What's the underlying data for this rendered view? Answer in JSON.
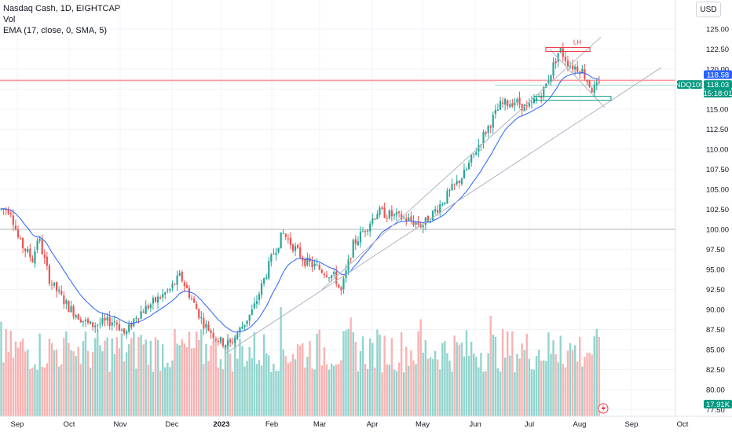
{
  "legend": {
    "title": "Nasdaq Cash, 1D, EIGHTCAP",
    "volume": "Vol",
    "ema": "EMA (17, close, 0, SMA, 5)"
  },
  "currency_button": "USD",
  "symbol_tag": "NDQ100",
  "price_tags": {
    "ema_value": "118.58",
    "last_price": "118.03",
    "countdown": "15:18:01",
    "volume_value": "17.91K"
  },
  "annotation_text": "LH",
  "colors": {
    "up": "#26a69a",
    "down": "#ef5350",
    "vol_up": "#7fcdc4",
    "vol_down": "#f7a6a4",
    "ema": "#2962ff",
    "trend": "#b2b5be",
    "resistance": "#f23645",
    "support": "#089981"
  },
  "chart_data": {
    "type": "candlestick",
    "title": "Nasdaq Cash, 1D, EIGHTCAP",
    "ylim": [
      77.5,
      126.5
    ],
    "y_ticks": [
      "125.00",
      "122.50",
      "120.00",
      "117.50",
      "115.00",
      "112.50",
      "110.00",
      "107.50",
      "105.00",
      "102.50",
      "100.00",
      "97.50",
      "95.00",
      "92.50",
      "90.00",
      "87.50",
      "85.00",
      "82.50",
      "80.00",
      "77.50"
    ],
    "x_ticks": [
      "Sep",
      "Oct",
      "Nov",
      "Dec",
      "2023",
      "Feb",
      "Mar",
      "Apr",
      "May",
      "Jun",
      "Jul",
      "Aug",
      "Sep",
      "Oct"
    ],
    "horizontal_levels": [
      {
        "price": 118.6,
        "label": "resistance (red)"
      },
      {
        "price": 100.0,
        "label": "gray"
      }
    ],
    "series": [
      {
        "name": "Nasdaq Cash",
        "close_path": [
          [
            "Aug-25",
            102.5
          ],
          [
            "Sep-02",
            98.5
          ],
          [
            "Sep-10",
            96.2
          ],
          [
            "Sep-13",
            99.2
          ],
          [
            "Sep-20",
            93.5
          ],
          [
            "Oct-01",
            90.2
          ],
          [
            "Oct-13",
            88.0
          ],
          [
            "Oct-28",
            88.6
          ],
          [
            "Nov-04",
            86.8
          ],
          [
            "Nov-10",
            89.2
          ],
          [
            "Nov-30",
            92.5
          ],
          [
            "Dec-06",
            94.2
          ],
          [
            "Dec-20",
            88.3
          ],
          [
            "Dec-30",
            86.0
          ],
          [
            "Jan-06",
            85.6
          ],
          [
            "Jan-20",
            90.0
          ],
          [
            "Feb-02",
            97.0
          ],
          [
            "Feb-08",
            99.5
          ],
          [
            "Feb-22",
            96.0
          ],
          [
            "Mar-10",
            94.0
          ],
          [
            "Mar-13",
            92.0
          ],
          [
            "Mar-20",
            98.0
          ],
          [
            "Apr-04",
            102.2
          ],
          [
            "Apr-21",
            101.3
          ],
          [
            "May-01",
            100.5
          ],
          [
            "May-10",
            102.8
          ],
          [
            "May-25",
            107.0
          ],
          [
            "Jun-05",
            111.5
          ],
          [
            "Jun-15",
            115.5
          ],
          [
            "Jun-23",
            116.0
          ],
          [
            "Jun-30",
            115.0
          ],
          [
            "Jul-10",
            117.5
          ],
          [
            "Jul-19",
            122.5
          ],
          [
            "Jul-25",
            120.5
          ],
          [
            "Aug-02",
            120.0
          ],
          [
            "Aug-08",
            117.5
          ],
          [
            "Aug-14",
            118.0
          ]
        ]
      },
      {
        "name": "EMA (17, close, 0, SMA, 5)",
        "last_value": 118.58
      },
      {
        "name": "Vol",
        "last_value": "17.91K"
      }
    ],
    "zones": [
      {
        "label": "LH",
        "y_range": [
          122.1,
          122.7
        ]
      },
      {
        "label": "support box",
        "y_range": [
          116.1,
          116.6
        ]
      }
    ]
  }
}
